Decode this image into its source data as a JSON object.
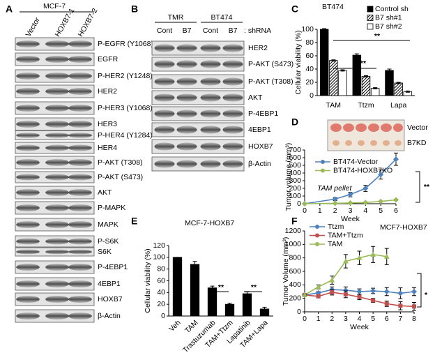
{
  "blots": [
    {
      "panel": "A",
      "cell_line": "MCF-7",
      "lanes": [
        "Vector",
        "HOXB7-1",
        "HOXB7-2"
      ],
      "rows": [
        "P-EGFR (Y1068)",
        "EGFR",
        "P-HER2 (Y1248)",
        "HER2",
        "P-HER3 (Y1068)",
        "HER3",
        "P-HER4 (Y1284)",
        "HER4",
        "P-AKT (T308)",
        "P-AKT (S473)",
        "AKT",
        "P-MAPK",
        "MAPK",
        "P-S6K",
        "S6K",
        "P-4EBP1",
        "4EBP1",
        "HOXB7",
        "β-Actin"
      ]
    },
    {
      "panel": "B",
      "groups": [
        "TMR",
        "BT474"
      ],
      "lanes": [
        "Cont",
        "B7",
        "Cont",
        "B7"
      ],
      "lane_suffix": ": shRNA",
      "rows": [
        "HER2",
        "P-AKT (S473)",
        "P-AKT (T308)",
        "AKT",
        "P-4EBP1",
        "4EBP1",
        "HOXB7",
        "β-Actin"
      ]
    }
  ],
  "chart_data": [
    {
      "panel": "C",
      "type": "bar",
      "title": "BT474",
      "y_label": "Cellular viability (%)",
      "categories": [
        "TAM",
        "Ttzm",
        "Lapa"
      ],
      "series": [
        {
          "name": "Control sh",
          "color": "#000000",
          "values": [
            100,
            61,
            38
          ],
          "errors": [
            1,
            2,
            2
          ]
        },
        {
          "name": "B7 sh#1",
          "color": "#000000",
          "pattern": "hatch",
          "values": [
            53,
            29,
            19
          ],
          "errors": [
            1,
            1,
            1
          ]
        },
        {
          "name": "B7 sh#2",
          "color": "#ffffff",
          "values": [
            38,
            11,
            6
          ],
          "errors": [
            1,
            1,
            1
          ]
        }
      ],
      "ylim": [
        0,
        100
      ],
      "yticks": [
        0,
        20,
        40,
        60,
        80,
        100
      ],
      "annotations": [
        "**",
        "**"
      ]
    },
    {
      "panel": "D",
      "type": "line",
      "y_label": "Tumor volume (mm³)",
      "x_label": "Week",
      "photo_labels": [
        "Vector",
        "B7KD"
      ],
      "x": [
        0,
        2,
        3,
        4,
        5,
        6
      ],
      "series": [
        {
          "name": "BT474-Vector",
          "color": "#4f81bd",
          "values": [
            0,
            60,
            120,
            200,
            380,
            580
          ],
          "errors": [
            0,
            20,
            30,
            40,
            60,
            80
          ]
        },
        {
          "name": "BT474-HOXB7KO",
          "color": "#9bbb59",
          "values": [
            0,
            5,
            10,
            15,
            30,
            50
          ],
          "errors": [
            0,
            3,
            4,
            5,
            6,
            8
          ]
        }
      ],
      "xlim": [
        0,
        6
      ],
      "xticks": [
        0,
        1,
        2,
        3,
        4,
        5,
        6
      ],
      "ylim": [
        0,
        700
      ],
      "yticks": [
        0,
        100,
        200,
        300,
        400,
        500,
        600,
        700
      ],
      "annotations": [
        "TAM pellet",
        "**"
      ]
    },
    {
      "panel": "E",
      "type": "bar",
      "title": "MCF-7-HOXB7",
      "y_label": "Cellular viability (%)",
      "categories": [
        "Veh",
        "TAM",
        "Trastuzumab",
        "TAM+Ttzm",
        "Lapatinib",
        "TAM+Lapa"
      ],
      "series": [
        {
          "color": "#000000",
          "values": [
            100,
            88,
            48,
            20,
            38,
            12
          ],
          "errors": [
            0,
            5,
            3,
            2,
            3,
            3
          ]
        }
      ],
      "ylim": [
        0,
        120
      ],
      "yticks": [
        0,
        20,
        40,
        60,
        80,
        100,
        120
      ],
      "annotations": [
        "**",
        "**"
      ]
    },
    {
      "panel": "F",
      "type": "line",
      "title": "MCF7-HOXB7",
      "y_label": "Tumor Volume (mm³)",
      "x_label": "Week",
      "x": [
        0,
        1,
        2,
        3,
        4,
        5,
        6,
        7,
        8
      ],
      "series": [
        {
          "name": "Ttzm",
          "color": "#4f81bd",
          "marker": "diamond",
          "values": [
            250,
            280,
            330,
            320,
            300,
            310,
            300,
            275,
            300
          ],
          "errors": [
            10,
            20,
            40,
            50,
            40,
            40,
            60,
            80,
            60
          ]
        },
        {
          "name": "TAM+Ttzm",
          "color": "#c0504d",
          "marker": "square",
          "values": [
            250,
            230,
            290,
            260,
            220,
            170,
            120,
            90,
            80
          ],
          "errors": [
            10,
            20,
            40,
            50,
            40,
            30,
            40,
            60,
            60
          ]
        },
        {
          "name": "TAM",
          "color": "#9bbb59",
          "marker": "triangle",
          "values": [
            250,
            370,
            470,
            750,
            800,
            850,
            820,
            null,
            null
          ],
          "errors": [
            10,
            30,
            60,
            100,
            100,
            120,
            120,
            null,
            null
          ]
        }
      ],
      "xlim": [
        0,
        8
      ],
      "xticks": [
        0,
        1,
        2,
        3,
        4,
        5,
        6,
        7,
        8
      ],
      "ylim": [
        0,
        1200
      ],
      "yticks": [
        0,
        200,
        400,
        600,
        800,
        1000,
        1200
      ],
      "annotations": [
        "*"
      ]
    }
  ]
}
